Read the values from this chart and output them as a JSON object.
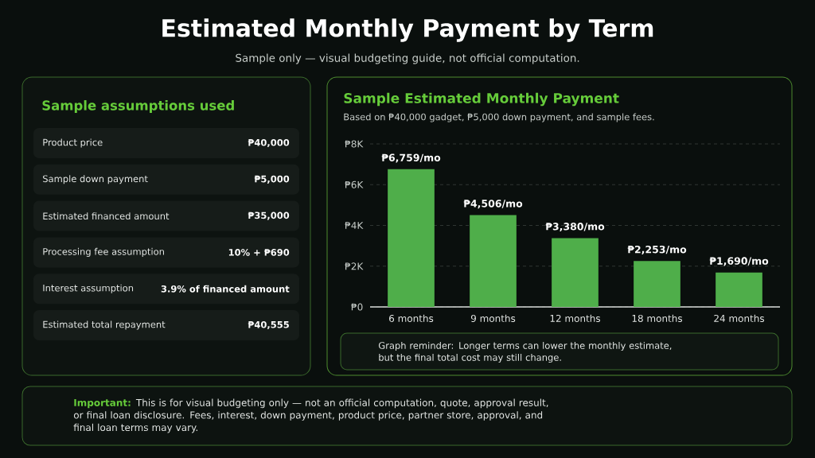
{
  "chart_data": [
    {
      "type": "other",
      "title": "Estimated Monthly Payment by Term",
      "subtitle": "Sample only — visual budgeting guide, not official computation."
    },
    {
      "type": "other",
      "title": "Sample assumptions used",
      "annotations": [
        "Product price",
        "₱40,000",
        "Sample down payment",
        "₱5,000",
        "Estimated financed amount",
        "₱35,000",
        "Processing fee assumption",
        "10% + ₱690",
        "Interest assumption",
        "3.9% of financed amount",
        "Estimated total repayment",
        "₱40,555"
      ]
    },
    {
      "type": "bar",
      "title": "Sample Estimated Monthly Payment",
      "subtitle": "Based on ₱40,000 gadget, ₱5,000 down payment, and sample fees.",
      "categories": [
        "6 months",
        "9 months",
        "12 months",
        "18 months",
        "24 months"
      ],
      "values": [
        6759,
        4506,
        3380,
        2253,
        1690
      ],
      "value_labels": [
        "₱6,759/mo",
        "₱4,506/mo",
        "₱3,380/mo",
        "₱2,253/mo",
        "₱1,690/mo"
      ],
      "color": "#4fae4a",
      "ylim": [
        0,
        8000
      ],
      "yticks": [
        {
          "value": 0,
          "label": "₱0"
        },
        {
          "value": 2000,
          "label": "₱2K"
        },
        {
          "value": 4000,
          "label": "₱4K"
        },
        {
          "value": 6000,
          "label": "₱6K"
        },
        {
          "value": 8000,
          "label": "₱8K"
        }
      ],
      "grid": "y",
      "annotations": [
        "Graph reminder: Longer terms can lower the monthly estimate, but the final total cost may still change."
      ]
    },
    {
      "type": "other",
      "annotations": [
        "Important:",
        "This is for visual budgeting only — not an official computation, quote, approval result, or final loan disclosure. Fees, interest, down payment, product price, partner store, approval, and final loan terms may vary."
      ]
    }
  ]
}
